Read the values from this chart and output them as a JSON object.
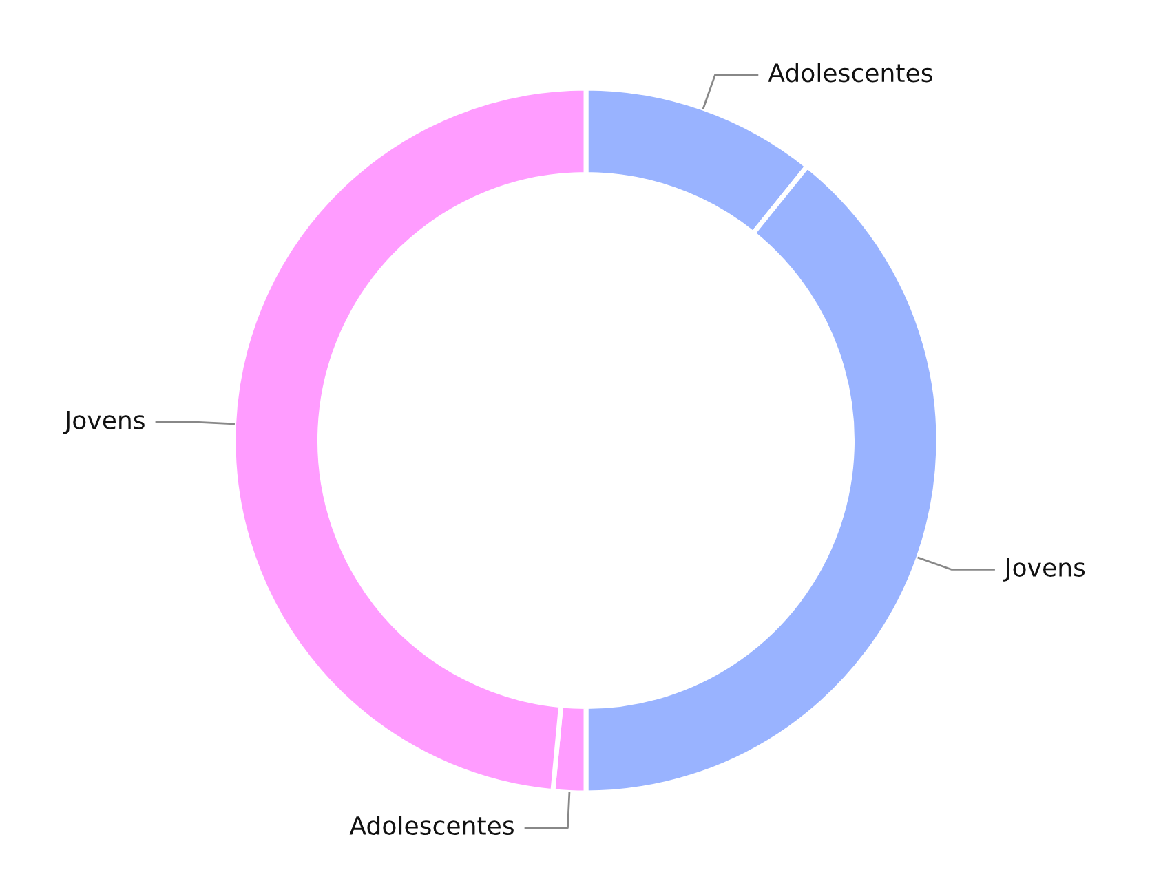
{
  "chart_data": {
    "type": "donut",
    "categories": [
      "Adolescentes",
      "Jovens",
      "Adolescentes",
      "Jovens"
    ],
    "values": [
      10.8,
      39.2,
      1.5,
      48.5
    ],
    "colors": [
      "#99b3ff",
      "#99b3ff",
      "#ff9cff",
      "#ff9cff"
    ]
  }
}
